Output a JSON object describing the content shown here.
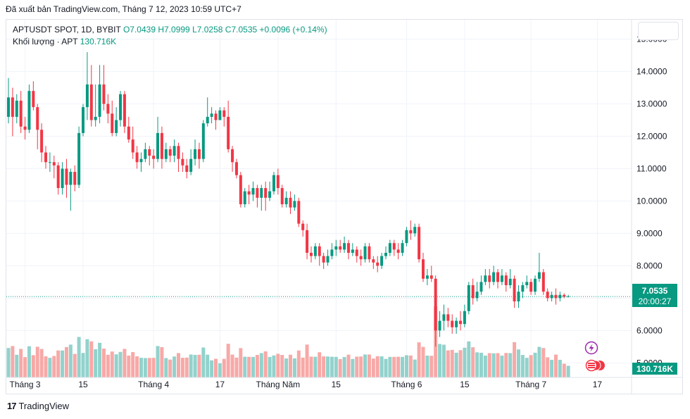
{
  "header": {
    "published": "Đã xuất bản TradingView.com, Tháng 7 12, 2023 10:59 UTC+7"
  },
  "legend": {
    "symbol": "APTUSDT SPOT, 1D, BYBIT",
    "open": "O7.0439",
    "high": "H7.0999",
    "low": "L7.0258",
    "close": "C7.0535",
    "change": "+0.0096 (+0.14%)",
    "volume_label": "Khối lượng · APT",
    "volume_value": "130.716K"
  },
  "price_tag": {
    "price": "7.0535",
    "countdown": "20:00:27"
  },
  "volume_tag": "130.716K",
  "footer": {
    "brand": "TradingView"
  },
  "colors": {
    "up": "#089981",
    "down": "#f23645",
    "vol_up": "#92d2cc",
    "vol_down": "#f7a9a7",
    "grid": "#f0f3fa"
  },
  "chart_data": {
    "type": "candlestick",
    "title": "APTUSDT SPOT, 1D, BYBIT",
    "y_ticks": [
      "15.0000",
      "14.0000",
      "13.0000",
      "12.0000",
      "11.0000",
      "10.0000",
      "9.0000",
      "8.0000",
      "7.0000",
      "6.0000",
      "5.0000"
    ],
    "y_tick_values": [
      15,
      14,
      13,
      12,
      11,
      10,
      9,
      8,
      7,
      6,
      5
    ],
    "ylim": [
      4.55,
      15.6
    ],
    "x_labels": [
      {
        "label": "Tháng 3",
        "index": 4
      },
      {
        "label": "15",
        "index": 18
      },
      {
        "label": "Tháng 4",
        "index": 35
      },
      {
        "label": "17",
        "index": 51
      },
      {
        "label": "Tháng Năm",
        "index": 65
      },
      {
        "label": "15",
        "index": 79
      },
      {
        "label": "Tháng 6",
        "index": 96
      },
      {
        "label": "15",
        "index": 110
      },
      {
        "label": "Tháng 7",
        "index": 126
      },
      {
        "label": "17",
        "index": 142
      }
    ],
    "candles": [
      [
        12.6,
        13.2,
        13.8,
        12.4
      ],
      [
        13.2,
        12.6,
        13.5,
        12.0
      ],
      [
        12.6,
        13.1,
        13.3,
        12.4
      ],
      [
        13.1,
        12.3,
        13.4,
        12.1
      ],
      [
        12.3,
        12.2,
        12.6,
        11.9
      ],
      [
        12.2,
        13.4,
        13.6,
        12.1
      ],
      [
        13.4,
        12.9,
        13.7,
        12.8
      ],
      [
        12.9,
        12.2,
        13.0,
        11.6
      ],
      [
        12.2,
        11.5,
        12.4,
        11.2
      ],
      [
        11.5,
        11.2,
        11.7,
        11.0
      ],
      [
        11.2,
        11.2,
        11.5,
        10.9
      ],
      [
        11.2,
        11.1,
        11.4,
        10.7
      ],
      [
        11.1,
        10.4,
        11.2,
        10.2
      ],
      [
        10.4,
        11.0,
        11.2,
        10.2
      ],
      [
        11.0,
        10.5,
        11.3,
        10.1
      ],
      [
        10.5,
        10.9,
        11.0,
        9.7
      ],
      [
        10.9,
        10.5,
        11.1,
        10.3
      ],
      [
        10.5,
        12.1,
        12.3,
        10.4
      ],
      [
        12.1,
        12.9,
        13.0,
        12.0
      ],
      [
        12.9,
        13.6,
        14.6,
        12.5
      ],
      [
        13.6,
        12.5,
        14.2,
        12.3
      ],
      [
        12.5,
        12.6,
        13.6,
        12.3
      ],
      [
        12.6,
        13.6,
        14.2,
        12.4
      ],
      [
        13.6,
        13.0,
        14.2,
        12.8
      ],
      [
        13.0,
        12.7,
        13.3,
        12.4
      ],
      [
        12.7,
        12.1,
        13.1,
        12.0
      ],
      [
        12.1,
        12.5,
        12.9,
        12.0
      ],
      [
        12.5,
        13.3,
        13.4,
        12.3
      ],
      [
        13.3,
        12.3,
        13.4,
        12.1
      ],
      [
        12.3,
        11.9,
        12.6,
        11.8
      ],
      [
        11.9,
        11.5,
        12.3,
        11.3
      ],
      [
        11.5,
        11.2,
        11.7,
        11.0
      ],
      [
        11.2,
        11.3,
        11.5,
        10.9
      ],
      [
        11.3,
        11.6,
        11.8,
        11.2
      ],
      [
        11.6,
        11.4,
        11.7,
        11.1
      ],
      [
        11.4,
        11.3,
        11.6,
        11.0
      ],
      [
        11.3,
        12.1,
        12.6,
        11.2
      ],
      [
        12.1,
        11.3,
        12.3,
        11.0
      ],
      [
        11.3,
        11.6,
        11.8,
        11.2
      ],
      [
        11.6,
        11.4,
        11.7,
        11.2
      ],
      [
        11.4,
        11.7,
        11.9,
        11.2
      ],
      [
        11.7,
        11.3,
        11.8,
        10.9
      ],
      [
        11.3,
        11.1,
        11.5,
        10.9
      ],
      [
        11.1,
        10.9,
        11.3,
        10.7
      ],
      [
        10.9,
        11.3,
        11.6,
        10.8
      ],
      [
        11.3,
        11.6,
        11.9,
        11.1
      ],
      [
        11.6,
        11.3,
        11.8,
        11.0
      ],
      [
        11.3,
        12.4,
        12.5,
        11.2
      ],
      [
        12.4,
        12.6,
        13.2,
        12.3
      ],
      [
        12.6,
        12.7,
        12.9,
        12.4
      ],
      [
        12.7,
        12.5,
        12.8,
        12.2
      ],
      [
        12.5,
        12.8,
        12.9,
        12.6
      ],
      [
        12.8,
        12.6,
        12.9,
        12.3
      ],
      [
        12.6,
        11.6,
        13.1,
        11.5
      ],
      [
        11.6,
        11.2,
        11.7,
        10.9
      ],
      [
        11.2,
        10.8,
        11.3,
        10.7
      ],
      [
        10.8,
        9.9,
        10.9,
        9.8
      ],
      [
        9.9,
        10.3,
        10.4,
        9.8
      ],
      [
        10.3,
        10.2,
        10.5,
        9.9
      ],
      [
        10.2,
        10.4,
        10.6,
        10.0
      ],
      [
        10.4,
        10.1,
        10.5,
        9.8
      ],
      [
        10.1,
        10.4,
        10.5,
        9.7
      ],
      [
        10.4,
        10.1,
        10.6,
        9.7
      ],
      [
        10.1,
        10.3,
        10.6,
        10.0
      ],
      [
        10.3,
        10.8,
        10.9,
        10.2
      ],
      [
        10.8,
        10.4,
        11.0,
        10.2
      ],
      [
        10.4,
        9.9,
        10.5,
        9.8
      ],
      [
        9.9,
        10.1,
        10.3,
        9.8
      ],
      [
        10.1,
        9.8,
        10.3,
        9.6
      ],
      [
        9.8,
        10.0,
        10.2,
        9.7
      ],
      [
        10.0,
        9.3,
        10.1,
        9.2
      ],
      [
        9.3,
        9.1,
        9.4,
        8.9
      ],
      [
        9.1,
        8.4,
        9.3,
        8.2
      ],
      [
        8.4,
        8.3,
        8.6,
        8.1
      ],
      [
        8.3,
        8.6,
        8.7,
        8.2
      ],
      [
        8.6,
        8.3,
        8.7,
        8.0
      ],
      [
        8.3,
        8.1,
        8.4,
        7.9
      ],
      [
        8.1,
        8.3,
        8.5,
        8.0
      ],
      [
        8.3,
        8.5,
        8.7,
        8.2
      ],
      [
        8.5,
        8.6,
        8.8,
        8.3
      ],
      [
        8.6,
        8.5,
        8.8,
        8.4
      ],
      [
        8.5,
        8.7,
        8.9,
        8.4
      ],
      [
        8.7,
        8.4,
        8.8,
        8.2
      ],
      [
        8.4,
        8.5,
        8.7,
        8.3
      ],
      [
        8.5,
        8.3,
        8.6,
        8.1
      ],
      [
        8.3,
        8.2,
        8.5,
        8.0
      ],
      [
        8.2,
        8.6,
        8.7,
        8.1
      ],
      [
        8.6,
        8.2,
        8.7,
        8.1
      ],
      [
        8.2,
        8.1,
        8.3,
        7.9
      ],
      [
        8.1,
        8.0,
        8.3,
        7.8
      ],
      [
        8.0,
        8.3,
        8.4,
        7.9
      ],
      [
        8.3,
        8.4,
        8.6,
        8.2
      ],
      [
        8.4,
        8.7,
        8.8,
        8.3
      ],
      [
        8.7,
        8.5,
        8.8,
        8.3
      ],
      [
        8.5,
        8.4,
        8.7,
        8.2
      ],
      [
        8.4,
        8.7,
        8.8,
        8.3
      ],
      [
        8.7,
        9.1,
        9.2,
        8.6
      ],
      [
        9.1,
        9.0,
        9.4,
        8.8
      ],
      [
        9.0,
        9.2,
        9.3,
        8.9
      ],
      [
        9.2,
        8.2,
        9.3,
        8.1
      ],
      [
        8.2,
        7.6,
        8.4,
        7.5
      ],
      [
        7.6,
        7.7,
        7.9,
        7.4
      ],
      [
        7.7,
        7.6,
        8.0,
        7.5
      ],
      [
        7.6,
        6.0,
        7.7,
        5.5
      ],
      [
        6.0,
        6.3,
        6.6,
        5.8
      ],
      [
        6.3,
        6.5,
        6.8,
        6.0
      ],
      [
        6.5,
        6.3,
        6.7,
        6.1
      ],
      [
        6.3,
        6.1,
        6.5,
        5.9
      ],
      [
        6.1,
        6.3,
        6.4,
        5.9
      ],
      [
        6.3,
        6.2,
        6.6,
        6.0
      ],
      [
        6.2,
        6.6,
        6.8,
        6.1
      ],
      [
        6.6,
        7.4,
        7.5,
        6.5
      ],
      [
        7.4,
        7.0,
        7.6,
        6.8
      ],
      [
        7.0,
        7.2,
        7.5,
        6.9
      ],
      [
        7.2,
        7.5,
        7.7,
        7.1
      ],
      [
        7.5,
        7.7,
        7.9,
        7.4
      ],
      [
        7.7,
        7.5,
        7.9,
        7.3
      ],
      [
        7.5,
        7.8,
        8.0,
        7.4
      ],
      [
        7.8,
        7.5,
        7.9,
        7.3
      ],
      [
        7.5,
        7.7,
        7.9,
        7.4
      ],
      [
        7.7,
        7.4,
        7.8,
        7.2
      ],
      [
        7.4,
        7.6,
        7.9,
        7.3
      ],
      [
        7.6,
        6.9,
        7.7,
        6.7
      ],
      [
        6.9,
        7.2,
        7.4,
        6.7
      ],
      [
        7.2,
        7.4,
        7.5,
        7.0
      ],
      [
        7.4,
        7.5,
        7.7,
        7.3
      ],
      [
        7.5,
        7.2,
        7.6,
        7.1
      ],
      [
        7.2,
        7.6,
        7.7,
        7.1
      ],
      [
        7.6,
        7.8,
        8.4,
        7.5
      ],
      [
        7.8,
        7.2,
        7.9,
        7.1
      ],
      [
        7.2,
        7.0,
        7.3,
        6.9
      ],
      [
        7.0,
        7.1,
        7.2,
        6.9
      ],
      [
        7.1,
        7.0,
        7.3,
        6.8
      ],
      [
        7.0,
        7.1,
        7.2,
        6.9
      ],
      [
        7.1,
        7.04,
        7.15,
        7.0
      ],
      [
        7.04,
        7.05,
        7.1,
        7.03
      ]
    ],
    "volume_label": "Khối lượng · APT"
  }
}
